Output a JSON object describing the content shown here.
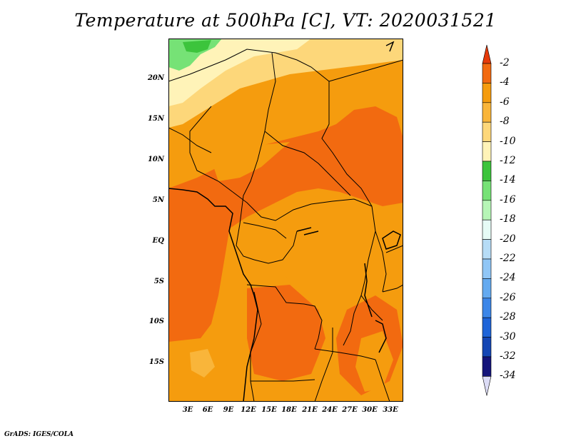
{
  "title": "Temperature at 500hPa [C], VT: 2020031521",
  "credit": "GrADS: IGES/COLA",
  "map": {
    "lat_labels": [
      "20N",
      "15N",
      "10N",
      "5N",
      "EQ",
      "5S",
      "10S",
      "15S"
    ],
    "lon_labels": [
      "3E",
      "6E",
      "9E",
      "12E",
      "15E",
      "18E",
      "21E",
      "24E",
      "27E",
      "30E",
      "33E"
    ]
  },
  "colorbar": {
    "labels": [
      "-2",
      "-4",
      "-6",
      "-8",
      "-10",
      "-12",
      "-14",
      "-16",
      "-18",
      "-20",
      "-22",
      "-24",
      "-26",
      "-28",
      "-30",
      "-32",
      "-34"
    ],
    "colors": [
      "#e63a0a",
      "#f26a10",
      "#f59c0e",
      "#f9b53a",
      "#fdd77a",
      "#fff3b8",
      "#3cc43c",
      "#76e276",
      "#b6f5b6",
      "#e6fbf6",
      "#b6dcf6",
      "#90c6f6",
      "#64aaf0",
      "#3c86e8",
      "#1e64d8",
      "#1446b4",
      "#14147a",
      "#dcdcf6"
    ]
  }
}
